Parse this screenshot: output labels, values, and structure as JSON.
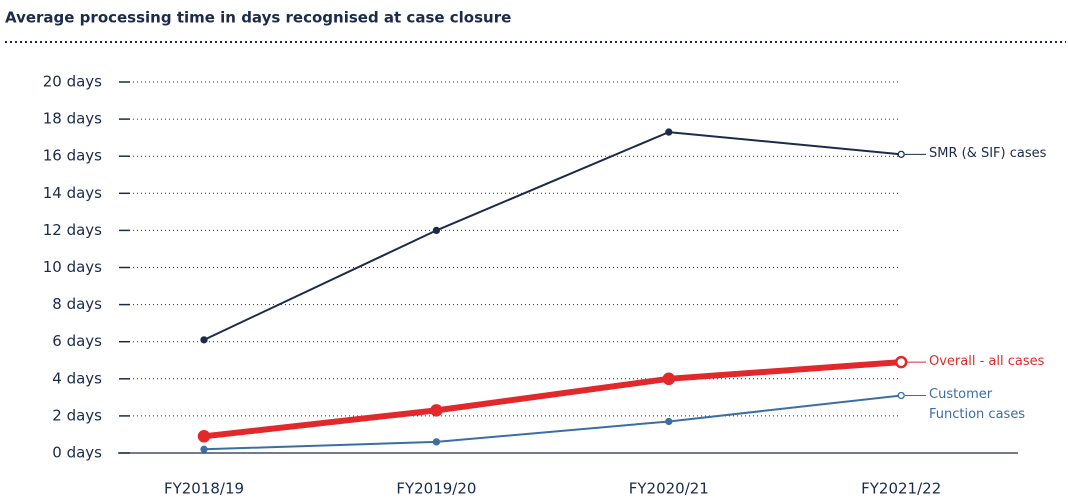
{
  "chart_data": {
    "type": "line",
    "title": "Average processing time in days recognised at case closure",
    "categories": [
      "FY2018/19",
      "FY2019/20",
      "FY2020/21",
      "FY2021/22"
    ],
    "series": [
      {
        "name": "SMR (& SIF) cases",
        "color": "#1c2b4b",
        "values": [
          6.1,
          12,
          17.3,
          16.1
        ]
      },
      {
        "name": "Overall - all cases",
        "color": "#e2282a",
        "values": [
          0.9,
          2.3,
          4.0,
          4.9
        ]
      },
      {
        "name": "Customer Function cases",
        "color": "#3a6ea5",
        "values": [
          0.2,
          0.6,
          1.7,
          3.1
        ]
      }
    ],
    "ylim": [
      0,
      20
    ],
    "yticks": [
      {
        "value": 0,
        "label": "0 days"
      },
      {
        "value": 2,
        "label": "2 days"
      },
      {
        "value": 4,
        "label": "4 days"
      },
      {
        "value": 6,
        "label": "6 days"
      },
      {
        "value": 8,
        "label": "8 days"
      },
      {
        "value": 10,
        "label": "10 days"
      },
      {
        "value": 12,
        "label": "12 days"
      },
      {
        "value": 14,
        "label": "14 days"
      },
      {
        "value": 16,
        "label": "16 days"
      },
      {
        "value": 18,
        "label": "18 days"
      },
      {
        "value": 20,
        "label": "20 days"
      }
    ],
    "grid": true
  }
}
